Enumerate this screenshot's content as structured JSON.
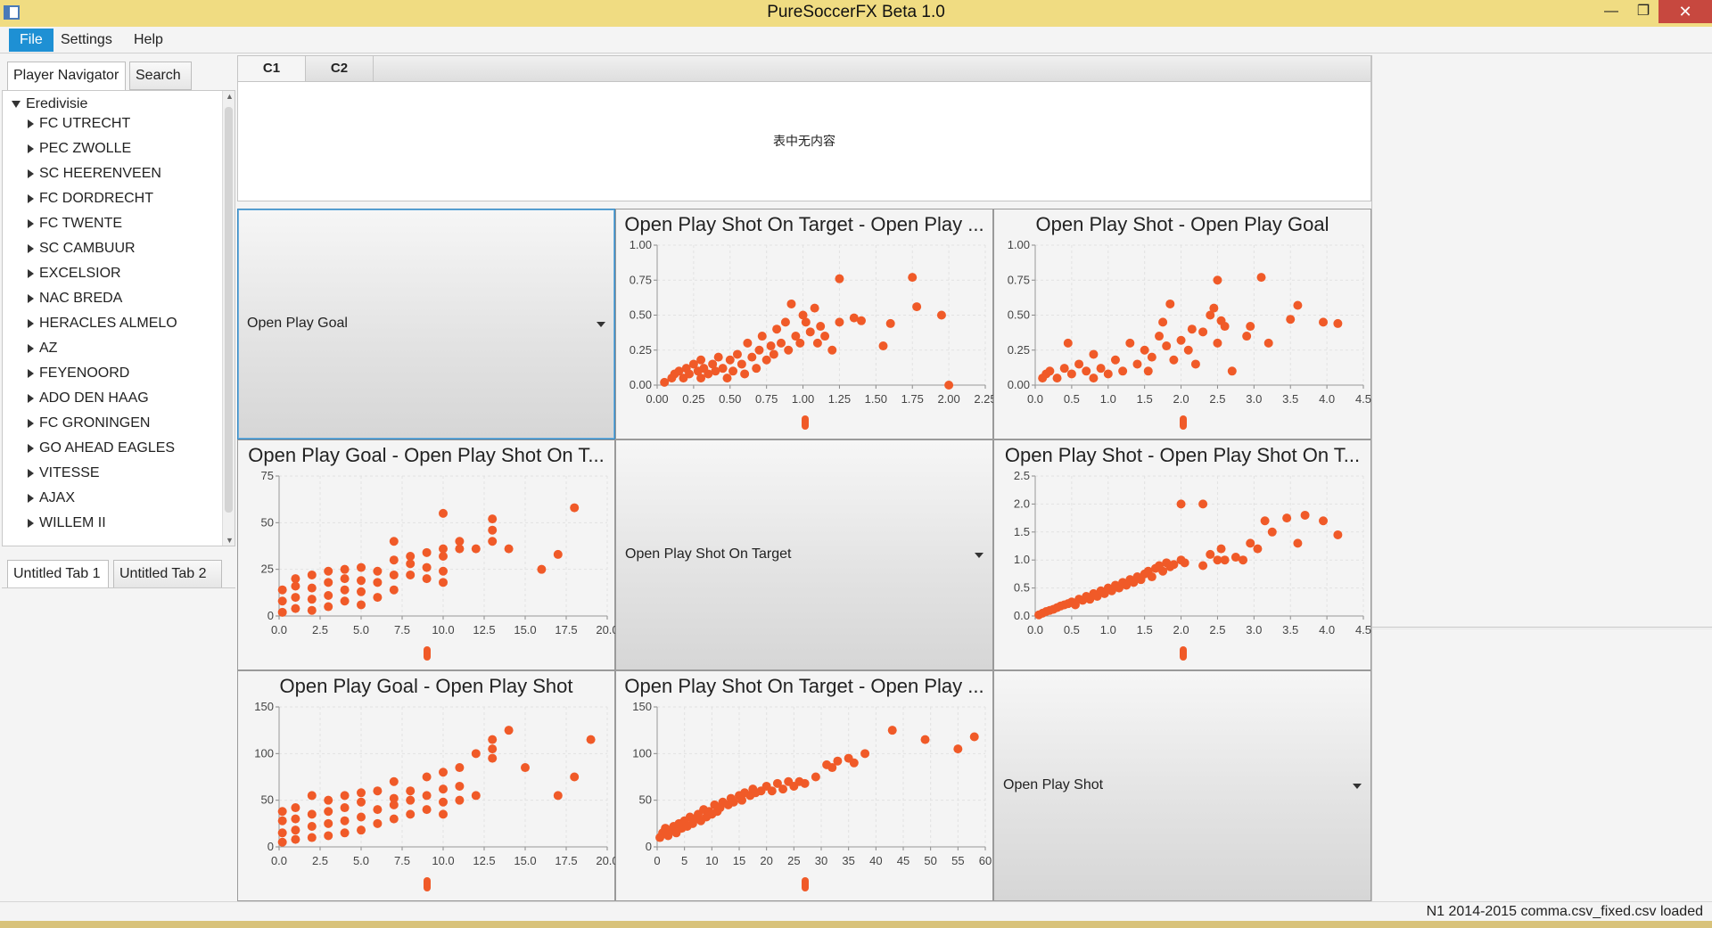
{
  "window": {
    "title": "PureSoccerFX Beta 1.0",
    "min_glyph": "—",
    "max_glyph": "❐",
    "close_glyph": "✕"
  },
  "menu": {
    "file": "File",
    "settings": "Settings",
    "help": "Help"
  },
  "left_panel": {
    "tabs": [
      "Player Navigator",
      "Search"
    ],
    "tree_root": "Eredivisie",
    "teams": [
      "FC UTRECHT",
      "PEC ZWOLLE",
      "SC HEERENVEEN",
      "FC DORDRECHT",
      "FC TWENTE",
      "SC CAMBUUR",
      "EXCELSIOR",
      "NAC BREDA",
      "HERACLES ALMELO",
      "AZ",
      "FEYENOORD",
      "ADO DEN HAAG",
      "FC GRONINGEN",
      "GO AHEAD EAGLES",
      "VITESSE",
      "AJAX",
      "WILLEM II"
    ],
    "bottom_tabs": [
      "Untitled Tab 1",
      "Untitled Tab 2"
    ]
  },
  "table": {
    "tabs": [
      "C1",
      "C2"
    ],
    "empty_text": "表中无内容"
  },
  "grid": {
    "combos": {
      "r0c0": "Open Play Goal",
      "r1c1": "Open Play Shot On Target",
      "r2c2": "Open Play Shot"
    }
  },
  "accent_color": "#f05a28",
  "status": "N1 2014-2015 comma.csv_fixed.csv loaded",
  "chart_data": [
    {
      "type": "scatter",
      "title": "Open Play Shot On Target - Open Play ...",
      "xticks": [
        "0.00",
        "0.25",
        "0.50",
        "0.75",
        "1.00",
        "1.25",
        "1.50",
        "1.75",
        "2.00",
        "2.25"
      ],
      "yticks": [
        "0.00",
        "0.25",
        "0.50",
        "0.75",
        "1.00"
      ],
      "xlim": [
        0,
        2.25
      ],
      "ylim": [
        0,
        1.0
      ],
      "grid": true,
      "points": [
        [
          0.05,
          0.02
        ],
        [
          0.1,
          0.05
        ],
        [
          0.12,
          0.08
        ],
        [
          0.15,
          0.1
        ],
        [
          0.18,
          0.05
        ],
        [
          0.2,
          0.12
        ],
        [
          0.22,
          0.08
        ],
        [
          0.25,
          0.15
        ],
        [
          0.28,
          0.1
        ],
        [
          0.3,
          0.05
        ],
        [
          0.3,
          0.18
        ],
        [
          0.32,
          0.12
        ],
        [
          0.35,
          0.08
        ],
        [
          0.38,
          0.15
        ],
        [
          0.4,
          0.1
        ],
        [
          0.42,
          0.2
        ],
        [
          0.45,
          0.12
        ],
        [
          0.48,
          0.05
        ],
        [
          0.5,
          0.18
        ],
        [
          0.52,
          0.1
        ],
        [
          0.55,
          0.22
        ],
        [
          0.58,
          0.15
        ],
        [
          0.6,
          0.08
        ],
        [
          0.62,
          0.3
        ],
        [
          0.65,
          0.2
        ],
        [
          0.68,
          0.12
        ],
        [
          0.7,
          0.25
        ],
        [
          0.72,
          0.35
        ],
        [
          0.75,
          0.18
        ],
        [
          0.78,
          0.28
        ],
        [
          0.8,
          0.22
        ],
        [
          0.82,
          0.4
        ],
        [
          0.85,
          0.3
        ],
        [
          0.88,
          0.45
        ],
        [
          0.9,
          0.25
        ],
        [
          0.92,
          0.58
        ],
        [
          0.95,
          0.35
        ],
        [
          0.98,
          0.3
        ],
        [
          1.0,
          0.5
        ],
        [
          1.02,
          0.45
        ],
        [
          1.05,
          0.38
        ],
        [
          1.08,
          0.55
        ],
        [
          1.1,
          0.3
        ],
        [
          1.12,
          0.42
        ],
        [
          1.15,
          0.35
        ],
        [
          1.2,
          0.25
        ],
        [
          1.25,
          0.45
        ],
        [
          1.25,
          0.76
        ],
        [
          1.35,
          0.48
        ],
        [
          1.4,
          0.46
        ],
        [
          1.55,
          0.28
        ],
        [
          1.6,
          0.44
        ],
        [
          1.75,
          0.77
        ],
        [
          1.78,
          0.56
        ],
        [
          1.95,
          0.5
        ],
        [
          2.0,
          0.0
        ]
      ]
    },
    {
      "type": "scatter",
      "title": "Open Play Shot - Open Play Goal",
      "xticks": [
        "0.0",
        "0.5",
        "1.0",
        "1.5",
        "2.0",
        "2.5",
        "3.0",
        "3.5",
        "4.0",
        "4.5"
      ],
      "yticks": [
        "0.00",
        "0.25",
        "0.50",
        "0.75",
        "1.00"
      ],
      "xlim": [
        0,
        4.5
      ],
      "ylim": [
        0,
        1.0
      ],
      "grid": true,
      "points": [
        [
          0.1,
          0.05
        ],
        [
          0.15,
          0.08
        ],
        [
          0.2,
          0.1
        ],
        [
          0.3,
          0.05
        ],
        [
          0.4,
          0.12
        ],
        [
          0.45,
          0.3
        ],
        [
          0.5,
          0.08
        ],
        [
          0.6,
          0.15
        ],
        [
          0.7,
          0.1
        ],
        [
          0.8,
          0.05
        ],
        [
          0.8,
          0.22
        ],
        [
          0.9,
          0.12
        ],
        [
          1.0,
          0.08
        ],
        [
          1.1,
          0.18
        ],
        [
          1.2,
          0.1
        ],
        [
          1.3,
          0.3
        ],
        [
          1.4,
          0.15
        ],
        [
          1.5,
          0.25
        ],
        [
          1.55,
          0.1
        ],
        [
          1.6,
          0.2
        ],
        [
          1.7,
          0.35
        ],
        [
          1.75,
          0.45
        ],
        [
          1.8,
          0.28
        ],
        [
          1.85,
          0.58
        ],
        [
          1.9,
          0.18
        ],
        [
          2.0,
          0.32
        ],
        [
          2.1,
          0.25
        ],
        [
          2.15,
          0.4
        ],
        [
          2.2,
          0.15
        ],
        [
          2.3,
          0.38
        ],
        [
          2.4,
          0.5
        ],
        [
          2.45,
          0.55
        ],
        [
          2.5,
          0.3
        ],
        [
          2.5,
          0.75
        ],
        [
          2.55,
          0.46
        ],
        [
          2.6,
          0.42
        ],
        [
          2.7,
          0.1
        ],
        [
          2.9,
          0.35
        ],
        [
          2.95,
          0.42
        ],
        [
          3.1,
          0.77
        ],
        [
          3.2,
          0.3
        ],
        [
          3.5,
          0.47
        ],
        [
          3.6,
          0.57
        ],
        [
          3.95,
          0.45
        ],
        [
          4.15,
          0.44
        ]
      ]
    },
    {
      "type": "scatter",
      "title": "Open Play Goal - Open Play Shot On T...",
      "xticks": [
        "0.0",
        "2.5",
        "5.0",
        "7.5",
        "10.0",
        "12.5",
        "15.0",
        "17.5",
        "20.0"
      ],
      "yticks": [
        "0",
        "25",
        "50",
        "75"
      ],
      "xlim": [
        0,
        20
      ],
      "ylim": [
        0,
        75
      ],
      "grid": true,
      "points": [
        [
          0.2,
          2
        ],
        [
          0.2,
          8
        ],
        [
          0.2,
          14
        ],
        [
          1,
          4
        ],
        [
          1,
          10
        ],
        [
          1,
          16
        ],
        [
          1,
          20
        ],
        [
          2,
          3
        ],
        [
          2,
          9
        ],
        [
          2,
          15
        ],
        [
          2,
          22
        ],
        [
          3,
          5
        ],
        [
          3,
          11
        ],
        [
          3,
          18
        ],
        [
          3,
          24
        ],
        [
          4,
          8
        ],
        [
          4,
          14
        ],
        [
          4,
          20
        ],
        [
          4,
          25
        ],
        [
          5,
          6
        ],
        [
          5,
          13
        ],
        [
          5,
          19
        ],
        [
          5,
          26
        ],
        [
          6,
          10
        ],
        [
          6,
          18
        ],
        [
          6,
          24
        ],
        [
          7,
          14
        ],
        [
          7,
          22
        ],
        [
          7,
          30
        ],
        [
          7,
          40
        ],
        [
          8,
          22
        ],
        [
          8,
          28
        ],
        [
          8,
          32
        ],
        [
          9,
          20
        ],
        [
          9,
          26
        ],
        [
          9,
          34
        ],
        [
          10,
          18
        ],
        [
          10,
          24
        ],
        [
          10,
          32
        ],
        [
          10,
          36
        ],
        [
          10,
          55
        ],
        [
          11,
          36
        ],
        [
          11,
          40
        ],
        [
          12,
          36
        ],
        [
          13,
          40
        ],
        [
          13,
          46
        ],
        [
          13,
          52
        ],
        [
          14,
          36
        ],
        [
          16,
          25
        ],
        [
          17,
          33
        ],
        [
          18,
          58
        ]
      ]
    },
    {
      "type": "scatter",
      "title": "Open Play Shot - Open Play Shot On T...",
      "xticks": [
        "0.0",
        "0.5",
        "1.0",
        "1.5",
        "2.0",
        "2.5",
        "3.0",
        "3.5",
        "4.0",
        "4.5"
      ],
      "yticks": [
        "0.0",
        "0.5",
        "1.0",
        "1.5",
        "2.0",
        "2.5"
      ],
      "xlim": [
        0,
        4.5
      ],
      "ylim": [
        0,
        2.5
      ],
      "grid": true,
      "points": [
        [
          0.05,
          0.02
        ],
        [
          0.1,
          0.05
        ],
        [
          0.15,
          0.08
        ],
        [
          0.2,
          0.1
        ],
        [
          0.25,
          0.12
        ],
        [
          0.3,
          0.15
        ],
        [
          0.35,
          0.18
        ],
        [
          0.4,
          0.2
        ],
        [
          0.45,
          0.22
        ],
        [
          0.5,
          0.25
        ],
        [
          0.55,
          0.2
        ],
        [
          0.6,
          0.3
        ],
        [
          0.65,
          0.28
        ],
        [
          0.7,
          0.35
        ],
        [
          0.75,
          0.3
        ],
        [
          0.8,
          0.4
        ],
        [
          0.85,
          0.35
        ],
        [
          0.9,
          0.45
        ],
        [
          0.95,
          0.4
        ],
        [
          1.0,
          0.5
        ],
        [
          1.05,
          0.45
        ],
        [
          1.1,
          0.55
        ],
        [
          1.15,
          0.5
        ],
        [
          1.2,
          0.6
        ],
        [
          1.25,
          0.55
        ],
        [
          1.3,
          0.65
        ],
        [
          1.35,
          0.6
        ],
        [
          1.4,
          0.7
        ],
        [
          1.45,
          0.65
        ],
        [
          1.5,
          0.75
        ],
        [
          1.55,
          0.8
        ],
        [
          1.6,
          0.7
        ],
        [
          1.65,
          0.85
        ],
        [
          1.7,
          0.9
        ],
        [
          1.75,
          0.8
        ],
        [
          1.8,
          0.95
        ],
        [
          1.85,
          0.88
        ],
        [
          1.9,
          0.92
        ],
        [
          2.0,
          1.0
        ],
        [
          2.0,
          2.0
        ],
        [
          2.05,
          0.95
        ],
        [
          2.3,
          2.0
        ],
        [
          2.3,
          0.9
        ],
        [
          2.4,
          1.1
        ],
        [
          2.5,
          1.0
        ],
        [
          2.55,
          1.2
        ],
        [
          2.6,
          1.0
        ],
        [
          2.75,
          1.05
        ],
        [
          2.85,
          1.0
        ],
        [
          2.95,
          1.3
        ],
        [
          3.05,
          1.2
        ],
        [
          3.15,
          1.7
        ],
        [
          3.25,
          1.5
        ],
        [
          3.45,
          1.75
        ],
        [
          3.6,
          1.3
        ],
        [
          3.7,
          1.8
        ],
        [
          3.95,
          1.7
        ],
        [
          4.15,
          1.45
        ]
      ]
    },
    {
      "type": "scatter",
      "title": "Open Play Goal - Open Play Shot",
      "xticks": [
        "0.0",
        "2.5",
        "5.0",
        "7.5",
        "10.0",
        "12.5",
        "15.0",
        "17.5",
        "20.0"
      ],
      "yticks": [
        "0",
        "50",
        "100",
        "150"
      ],
      "xlim": [
        0,
        20
      ],
      "ylim": [
        0,
        150
      ],
      "grid": true,
      "points": [
        [
          0.2,
          5
        ],
        [
          0.2,
          15
        ],
        [
          0.2,
          28
        ],
        [
          0.2,
          38
        ],
        [
          1,
          8
        ],
        [
          1,
          18
        ],
        [
          1,
          30
        ],
        [
          1,
          42
        ],
        [
          2,
          10
        ],
        [
          2,
          22
        ],
        [
          2,
          35
        ],
        [
          2,
          55
        ],
        [
          3,
          12
        ],
        [
          3,
          25
        ],
        [
          3,
          38
        ],
        [
          3,
          50
        ],
        [
          4,
          15
        ],
        [
          4,
          28
        ],
        [
          4,
          42
        ],
        [
          4,
          55
        ],
        [
          5,
          18
        ],
        [
          5,
          32
        ],
        [
          5,
          48
        ],
        [
          5,
          58
        ],
        [
          6,
          25
        ],
        [
          6,
          40
        ],
        [
          6,
          60
        ],
        [
          7,
          30
        ],
        [
          7,
          45
        ],
        [
          7,
          52
        ],
        [
          7,
          70
        ],
        [
          8,
          35
        ],
        [
          8,
          50
        ],
        [
          8,
          60
        ],
        [
          9,
          40
        ],
        [
          9,
          55
        ],
        [
          9,
          75
        ],
        [
          10,
          35
        ],
        [
          10,
          48
        ],
        [
          10,
          62
        ],
        [
          10,
          80
        ],
        [
          11,
          50
        ],
        [
          11,
          65
        ],
        [
          11,
          85
        ],
        [
          12,
          55
        ],
        [
          12,
          100
        ],
        [
          13,
          95
        ],
        [
          13,
          105
        ],
        [
          13,
          115
        ],
        [
          14,
          125
        ],
        [
          15,
          85
        ],
        [
          17,
          55
        ],
        [
          18,
          75
        ],
        [
          19,
          115
        ]
      ]
    },
    {
      "type": "scatter",
      "title": "Open Play Shot On Target - Open Play ...",
      "xticks": [
        "0",
        "5",
        "10",
        "15",
        "20",
        "25",
        "30",
        "35",
        "40",
        "45",
        "50",
        "55",
        "60"
      ],
      "yticks": [
        "0",
        "50",
        "100",
        "150"
      ],
      "xlim": [
        0,
        60
      ],
      "ylim": [
        0,
        150
      ],
      "grid": true,
      "points": [
        [
          0.5,
          10
        ],
        [
          1,
          15
        ],
        [
          1.5,
          20
        ],
        [
          2,
          12
        ],
        [
          2.5,
          18
        ],
        [
          3,
          22
        ],
        [
          3.5,
          15
        ],
        [
          4,
          25
        ],
        [
          4.5,
          20
        ],
        [
          5,
          28
        ],
        [
          5.5,
          22
        ],
        [
          6,
          32
        ],
        [
          6.5,
          25
        ],
        [
          7,
          30
        ],
        [
          7.5,
          35
        ],
        [
          8,
          28
        ],
        [
          8.5,
          40
        ],
        [
          9,
          32
        ],
        [
          9.5,
          38
        ],
        [
          10,
          35
        ],
        [
          10.5,
          45
        ],
        [
          11,
          38
        ],
        [
          11.5,
          42
        ],
        [
          12,
          48
        ],
        [
          13,
          45
        ],
        [
          13.5,
          52
        ],
        [
          14,
          48
        ],
        [
          15,
          55
        ],
        [
          15.5,
          50
        ],
        [
          16,
          58
        ],
        [
          17,
          55
        ],
        [
          17.5,
          62
        ],
        [
          18,
          58
        ],
        [
          19,
          60
        ],
        [
          20,
          65
        ],
        [
          21,
          60
        ],
        [
          22,
          68
        ],
        [
          23,
          62
        ],
        [
          24,
          70
        ],
        [
          25,
          65
        ],
        [
          26,
          70
        ],
        [
          27,
          68
        ],
        [
          29,
          75
        ],
        [
          31,
          88
        ],
        [
          32,
          85
        ],
        [
          33,
          92
        ],
        [
          35,
          95
        ],
        [
          36,
          90
        ],
        [
          38,
          100
        ],
        [
          43,
          125
        ],
        [
          49,
          115
        ],
        [
          55,
          105
        ],
        [
          58,
          118
        ]
      ]
    }
  ]
}
